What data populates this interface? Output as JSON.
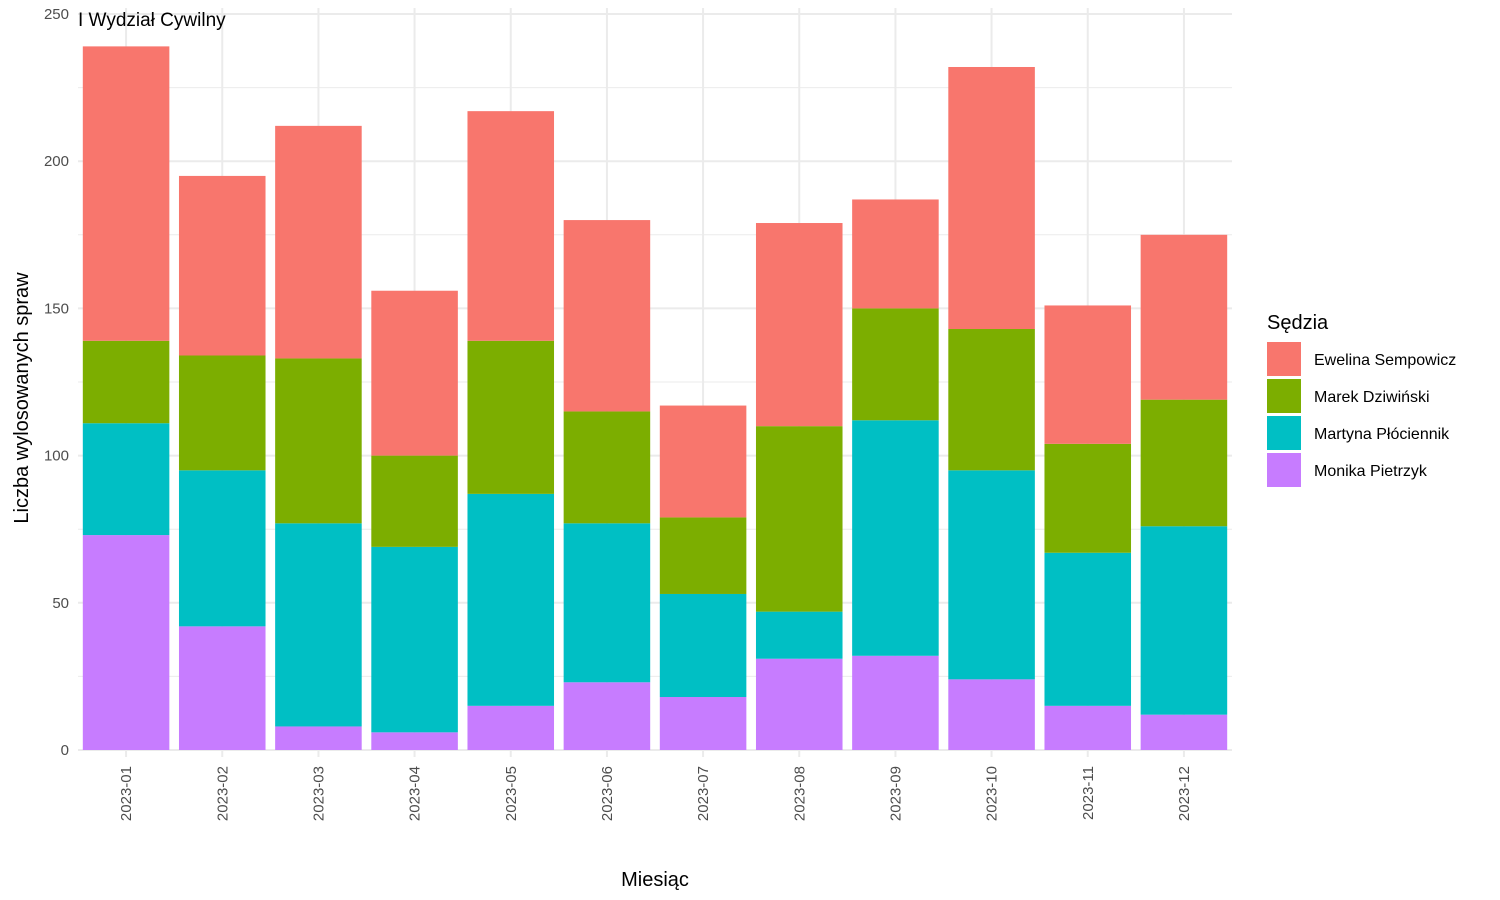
{
  "chart_data": {
    "type": "bar",
    "stacked": true,
    "title": "I Wydział Cywilny",
    "xlabel": "Miesiąc",
    "ylabel": "Liczba wylosowanych spraw",
    "ylim": [
      0,
      250
    ],
    "yticks": [
      0,
      50,
      100,
      150,
      200,
      250
    ],
    "grid": true,
    "legend_position": "right",
    "legend_title": "Sędzia",
    "categories": [
      "2023-01",
      "2023-02",
      "2023-03",
      "2023-04",
      "2023-05",
      "2023-06",
      "2023-07",
      "2023-08",
      "2023-09",
      "2023-10",
      "2023-11",
      "2023-12"
    ],
    "series": [
      {
        "name": "Monika Pietrzyk",
        "color": "#C77CFF",
        "values": [
          73,
          42,
          8,
          6,
          15,
          23,
          18,
          31,
          32,
          24,
          15,
          12
        ]
      },
      {
        "name": "Martyna Płóciennik",
        "color": "#00BFC4",
        "values": [
          38,
          53,
          69,
          63,
          72,
          54,
          35,
          16,
          80,
          71,
          52,
          64
        ]
      },
      {
        "name": "Marek Dziwiński",
        "color": "#7CAE00",
        "values": [
          28,
          39,
          56,
          31,
          52,
          38,
          26,
          63,
          38,
          48,
          37,
          43
        ]
      },
      {
        "name": "Ewelina Sempowicz",
        "color": "#F8766D",
        "values": [
          100,
          61,
          79,
          56,
          78,
          65,
          38,
          69,
          37,
          89,
          47,
          56
        ]
      }
    ],
    "legend_order": [
      "Ewelina Sempowicz",
      "Marek Dziwiński",
      "Martyna Płóciennik",
      "Monika Pietrzyk"
    ]
  }
}
